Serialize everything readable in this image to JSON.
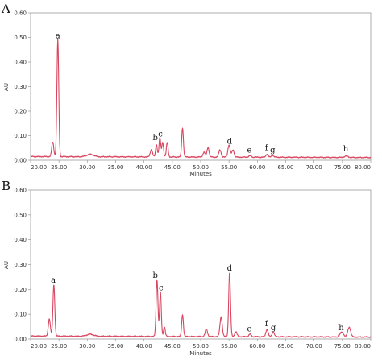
{
  "chart_data": [
    {
      "type": "line",
      "panel": "A",
      "color": "#d9455f",
      "xlabel": "Minutes",
      "ylabel": "AU",
      "xlim": [
        20,
        80
      ],
      "ylim": [
        0,
        0.6
      ],
      "xticks": [
        "20.00",
        "25.00",
        "30.00",
        "35.00",
        "40.00",
        "45.00",
        "50.00",
        "55.00",
        "60.00",
        "65.00",
        "70.00",
        "75.00",
        "80.00"
      ],
      "yticks": [
        "0.00",
        "0.10",
        "0.20",
        "0.30",
        "0.40",
        "0.50",
        "0.60"
      ],
      "baseline": 0.015,
      "peaks": [
        {
          "x": 23.9,
          "y": 0.06,
          "w": 0.18
        },
        {
          "x": 24.8,
          "y": 0.48,
          "w": 0.16
        },
        {
          "x": 30.5,
          "y": 0.01,
          "w": 0.6
        },
        {
          "x": 41.3,
          "y": 0.03,
          "w": 0.2
        },
        {
          "x": 42.2,
          "y": 0.05,
          "w": 0.15
        },
        {
          "x": 42.8,
          "y": 0.08,
          "w": 0.15
        },
        {
          "x": 43.3,
          "y": 0.06,
          "w": 0.15
        },
        {
          "x": 44.1,
          "y": 0.06,
          "w": 0.15
        },
        {
          "x": 46.8,
          "y": 0.12,
          "w": 0.15
        },
        {
          "x": 50.6,
          "y": 0.02,
          "w": 0.2
        },
        {
          "x": 51.3,
          "y": 0.04,
          "w": 0.18
        },
        {
          "x": 53.4,
          "y": 0.03,
          "w": 0.2
        },
        {
          "x": 55.0,
          "y": 0.05,
          "w": 0.2
        },
        {
          "x": 55.7,
          "y": 0.03,
          "w": 0.2
        },
        {
          "x": 58.7,
          "y": 0.006,
          "w": 0.2
        },
        {
          "x": 61.7,
          "y": 0.012,
          "w": 0.2
        },
        {
          "x": 62.7,
          "y": 0.008,
          "w": 0.2
        },
        {
          "x": 75.7,
          "y": 0.006,
          "w": 0.3
        }
      ],
      "peak_labels": [
        {
          "text": "a",
          "x": 24.8,
          "y": 0.49
        },
        {
          "text": "b",
          "x": 42.0,
          "y": 0.075
        },
        {
          "text": "c",
          "x": 42.9,
          "y": 0.09
        },
        {
          "text": "d",
          "x": 55.1,
          "y": 0.06
        },
        {
          "text": "e",
          "x": 58.6,
          "y": 0.025
        },
        {
          "text": "f",
          "x": 61.6,
          "y": 0.035
        },
        {
          "text": "g",
          "x": 62.7,
          "y": 0.025
        },
        {
          "text": "h",
          "x": 75.6,
          "y": 0.03
        }
      ]
    },
    {
      "type": "line",
      "panel": "B",
      "color": "#d9455f",
      "xlabel": "Minutes",
      "ylabel": "AU",
      "xlim": [
        20,
        80
      ],
      "ylim": [
        0,
        0.6
      ],
      "xticks": [
        "20.00",
        "25.00",
        "30.00",
        "35.00",
        "40.00",
        "45.00",
        "50.00",
        "55.00",
        "60.00",
        "65.00",
        "70.00",
        "75.00",
        "80.00"
      ],
      "yticks": [
        "0.00",
        "0.10",
        "0.20",
        "0.30",
        "0.40",
        "0.50",
        "0.60"
      ],
      "baseline": 0.012,
      "peaks": [
        {
          "x": 23.3,
          "y": 0.07,
          "w": 0.18
        },
        {
          "x": 24.1,
          "y": 0.21,
          "w": 0.16
        },
        {
          "x": 30.5,
          "y": 0.008,
          "w": 0.6
        },
        {
          "x": 42.3,
          "y": 0.23,
          "w": 0.16
        },
        {
          "x": 42.9,
          "y": 0.18,
          "w": 0.15
        },
        {
          "x": 43.6,
          "y": 0.04,
          "w": 0.15
        },
        {
          "x": 46.8,
          "y": 0.09,
          "w": 0.15
        },
        {
          "x": 51.0,
          "y": 0.03,
          "w": 0.2
        },
        {
          "x": 53.6,
          "y": 0.08,
          "w": 0.2
        },
        {
          "x": 55.1,
          "y": 0.26,
          "w": 0.16
        },
        {
          "x": 56.2,
          "y": 0.02,
          "w": 0.2
        },
        {
          "x": 58.7,
          "y": 0.01,
          "w": 0.2
        },
        {
          "x": 61.7,
          "y": 0.03,
          "w": 0.2
        },
        {
          "x": 62.8,
          "y": 0.02,
          "w": 0.2
        },
        {
          "x": 74.9,
          "y": 0.02,
          "w": 0.3
        },
        {
          "x": 76.2,
          "y": 0.04,
          "w": 0.25
        }
      ],
      "peak_labels": [
        {
          "text": "a",
          "x": 24.0,
          "y": 0.22
        },
        {
          "text": "b",
          "x": 42.0,
          "y": 0.24
        },
        {
          "text": "c",
          "x": 43.0,
          "y": 0.19
        },
        {
          "text": "d",
          "x": 55.1,
          "y": 0.27
        },
        {
          "text": "e",
          "x": 58.6,
          "y": 0.025
        },
        {
          "text": "f",
          "x": 61.6,
          "y": 0.045
        },
        {
          "text": "g",
          "x": 62.8,
          "y": 0.03
        },
        {
          "text": "h",
          "x": 74.8,
          "y": 0.03
        }
      ]
    }
  ]
}
